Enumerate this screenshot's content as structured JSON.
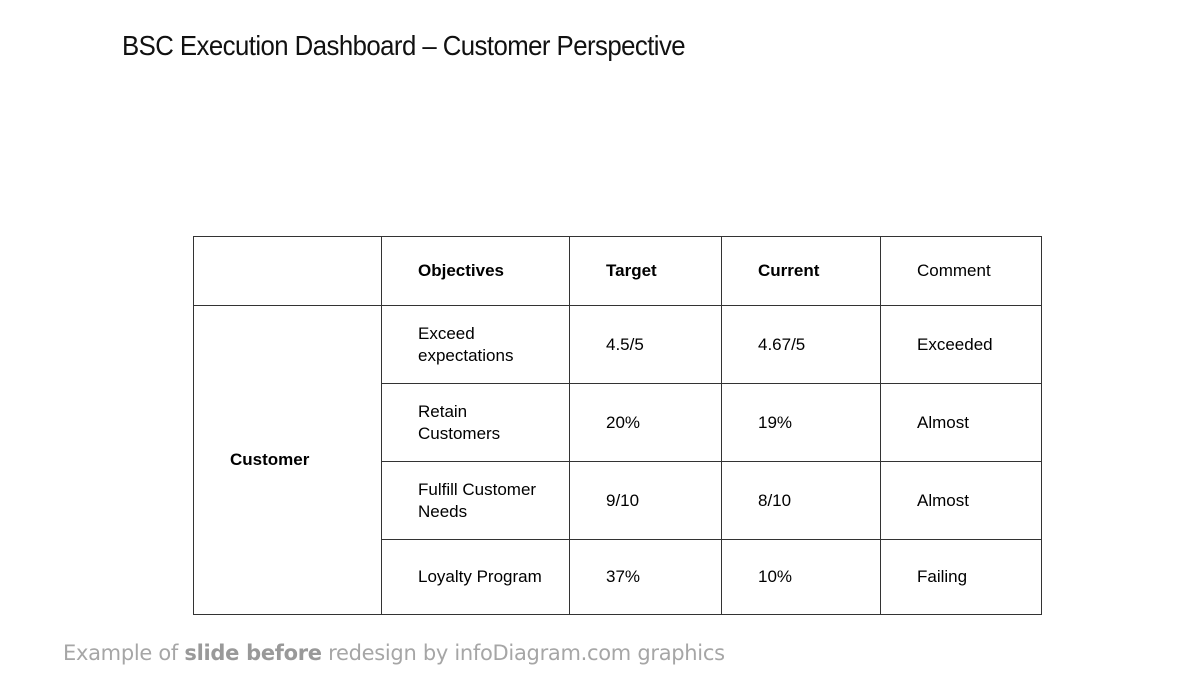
{
  "slide": {
    "title": "BSC Execution Dashboard – Customer Perspective"
  },
  "table": {
    "headers": {
      "perspective": "",
      "objectives": "Objectives",
      "target": "Target",
      "current": "Current",
      "comment": "Comment"
    },
    "perspective_label": "Customer",
    "rows": [
      {
        "objective": "Exceed expectations",
        "target": "4.5/5",
        "current": "4.67/5",
        "comment": "Exceeded"
      },
      {
        "objective": "Retain Customers",
        "target": "20%",
        "current": "19%",
        "comment": "Almost"
      },
      {
        "objective": "Fulfill Customer Needs",
        "target": "9/10",
        "current": "8/10",
        "comment": "Almost"
      },
      {
        "objective": "Loyalty Program",
        "target": "37%",
        "current": "10%",
        "comment": "Failing"
      }
    ]
  },
  "footer": {
    "prefix": "Example of ",
    "emphasis": "slide before",
    "suffix": " redesign by infoDiagram.com graphics"
  }
}
